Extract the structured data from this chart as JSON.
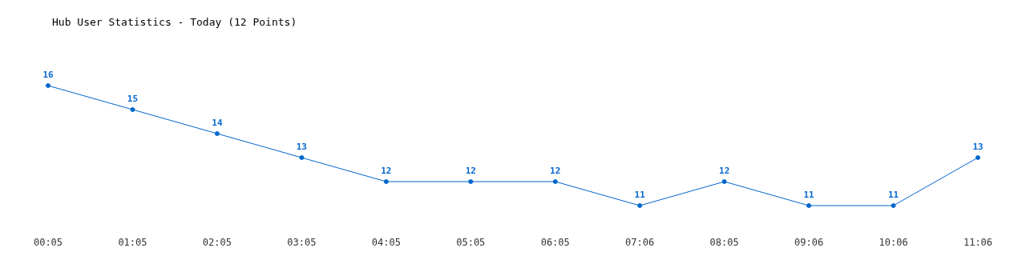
{
  "chart_data": {
    "type": "line",
    "title": "Hub User Statistics - Today (12 Points)",
    "categories": [
      "00:05",
      "01:05",
      "02:05",
      "03:05",
      "04:05",
      "05:05",
      "06:05",
      "07:06",
      "08:05",
      "09:06",
      "10:06",
      "11:06"
    ],
    "series": [
      {
        "color": "#0066cc",
        "values": [
          16,
          15,
          14,
          13,
          12,
          12,
          12,
          11,
          12,
          11,
          11,
          13
        ]
      }
    ],
    "data_labels": true,
    "marker": "circle",
    "line_style": "solid",
    "grid": false
  }
}
